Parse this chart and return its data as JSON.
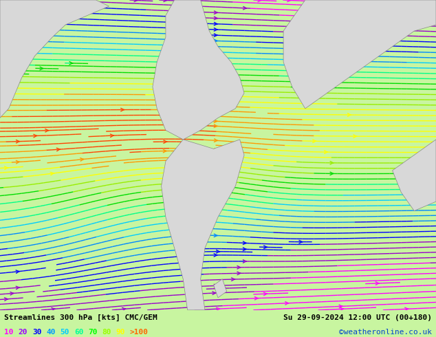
{
  "title_left": "Streamlines 300 hPa [kts] CMC/GEM",
  "title_right": "Su 29-09-2024 12:00 UTC (00+180)",
  "credit": "©weatheronline.co.uk",
  "legend_values": [
    "10",
    "20",
    "30",
    "40",
    "50",
    "60",
    "70",
    "80",
    "90",
    ">100"
  ],
  "legend_colors": [
    "#ff00ff",
    "#9900ff",
    "#0000ff",
    "#0099ff",
    "#00ccff",
    "#00ff99",
    "#00ff00",
    "#99ff00",
    "#ffff00",
    "#ff6600"
  ],
  "bg_color": "#c8f5a0",
  "land_color": "#d8d8d8",
  "figsize": [
    6.34,
    4.9
  ],
  "dpi": 100,
  "bottom_bar_color": "#000000",
  "text_color": "#000000",
  "streamline_colors_by_speed": {
    "10": "#ff00ff",
    "20": "#8800cc",
    "30": "#0000ff",
    "40": "#0088ff",
    "50": "#00ccff",
    "60": "#00ff88",
    "70": "#00dd00",
    "80": "#88ff00",
    "90": "#ffff00",
    "100": "#ff6600"
  }
}
